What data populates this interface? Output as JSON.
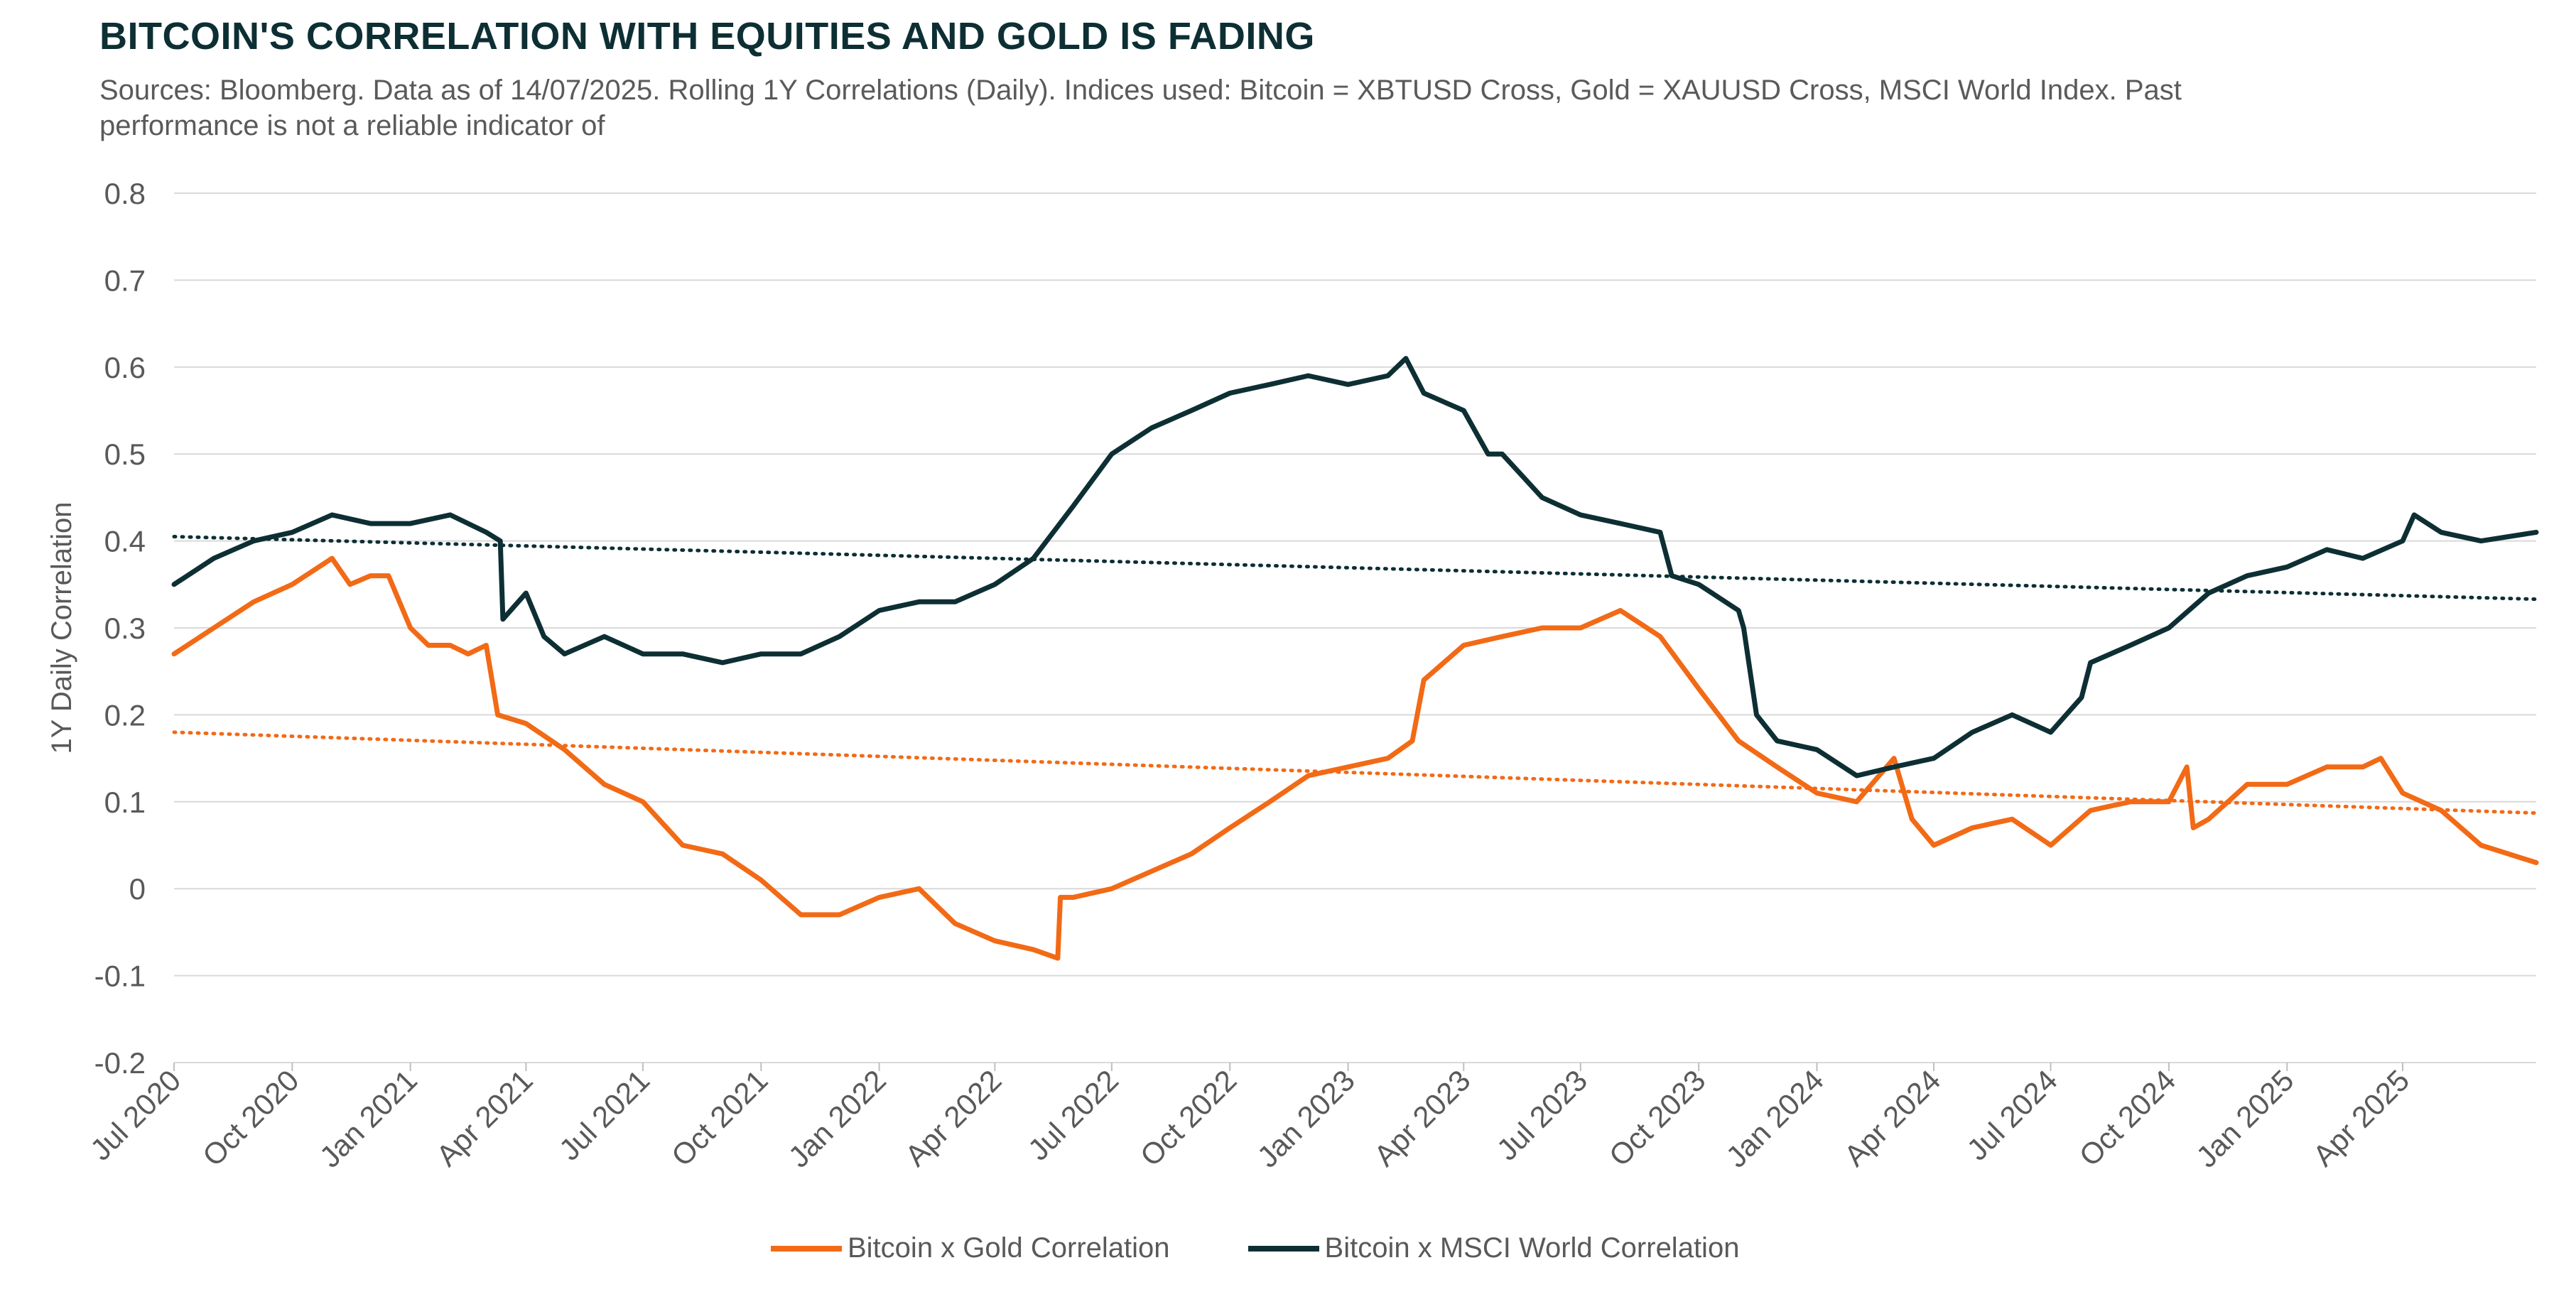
{
  "title": "BITCOIN'S CORRELATION WITH EQUITIES AND GOLD IS FADING",
  "subtitle": "Sources: Bloomberg. Data as of 14/07/2025. Rolling 1Y Correlations (Daily). Indices used: Bitcoin = XBTUSD Cross, Gold = XAUUSD Cross, MSCI World Index. Past performance is not a reliable indicator of",
  "colors": {
    "gold_series": "#f26a16",
    "msci_series": "#0d2f34",
    "grid": "#d9d9d9",
    "text": "#595959"
  },
  "chart_data": {
    "type": "line",
    "ylabel": "1Y Daily Correlation",
    "xlabel": "",
    "ylim": [
      -0.2,
      0.8
    ],
    "y_ticks": [
      "0.8",
      "0.7",
      "0.6",
      "0.5",
      "0.4",
      "0.3",
      "0.2",
      "0.1",
      "0",
      "-0.1",
      "-0.2"
    ],
    "y_tick_values": [
      0.8,
      0.7,
      0.6,
      0.5,
      0.4,
      0.3,
      0.2,
      0.1,
      0,
      -0.1,
      -0.2
    ],
    "x_ticks": [
      "Jul 2020",
      "Oct 2020",
      "Jan 2021",
      "Apr 2021",
      "Jul 2021",
      "Oct 2021",
      "Jan 2022",
      "Apr 2022",
      "Jul 2022",
      "Oct 2022",
      "Jan 2023",
      "Apr 2023",
      "Jul 2023",
      "Oct 2023",
      "Jan 2024",
      "Apr 2024",
      "Jul 2024",
      "Oct 2024",
      "Jan 2025",
      "Apr 2025"
    ],
    "xlim": [
      "2020-07-01",
      "2025-07-14"
    ],
    "grid": true,
    "legend_position": "bottom",
    "series": [
      {
        "name": "Bitcoin x Gold Correlation",
        "style": "solid",
        "x": [
          "2020-07-01",
          "2020-08-01",
          "2020-09-01",
          "2020-10-01",
          "2020-11-01",
          "2020-11-15",
          "2020-12-01",
          "2020-12-15",
          "2021-01-01",
          "2021-01-15",
          "2021-02-01",
          "2021-02-15",
          "2021-03-01",
          "2021-03-10",
          "2021-04-01",
          "2021-05-01",
          "2021-06-01",
          "2021-07-01",
          "2021-08-01",
          "2021-09-01",
          "2021-10-01",
          "2021-11-01",
          "2021-12-01",
          "2022-01-01",
          "2022-02-01",
          "2022-03-01",
          "2022-04-01",
          "2022-05-01",
          "2022-05-20",
          "2022-05-22",
          "2022-06-01",
          "2022-07-01",
          "2022-08-01",
          "2022-09-01",
          "2022-10-01",
          "2022-11-01",
          "2022-12-01",
          "2023-01-01",
          "2023-02-01",
          "2023-02-20",
          "2023-03-01",
          "2023-04-01",
          "2023-05-01",
          "2023-06-01",
          "2023-07-01",
          "2023-08-01",
          "2023-09-01",
          "2023-10-01",
          "2023-11-01",
          "2023-12-01",
          "2024-01-01",
          "2024-02-01",
          "2024-03-01",
          "2024-03-15",
          "2024-04-01",
          "2024-05-01",
          "2024-06-01",
          "2024-07-01",
          "2024-08-01",
          "2024-09-01",
          "2024-10-01",
          "2024-10-15",
          "2024-10-20",
          "2024-11-01",
          "2024-12-01",
          "2025-01-01",
          "2025-02-01",
          "2025-03-01",
          "2025-03-15",
          "2025-04-01",
          "2025-05-01",
          "2025-06-01",
          "2025-07-14"
        ],
        "y": [
          0.27,
          0.3,
          0.33,
          0.35,
          0.38,
          0.35,
          0.36,
          0.36,
          0.3,
          0.28,
          0.28,
          0.27,
          0.28,
          0.2,
          0.19,
          0.16,
          0.12,
          0.1,
          0.05,
          0.04,
          0.01,
          -0.03,
          -0.03,
          -0.01,
          0.0,
          -0.04,
          -0.06,
          -0.07,
          -0.08,
          -0.01,
          -0.01,
          0.0,
          0.02,
          0.04,
          0.07,
          0.1,
          0.13,
          0.14,
          0.15,
          0.17,
          0.24,
          0.28,
          0.29,
          0.3,
          0.3,
          0.32,
          0.29,
          0.23,
          0.17,
          0.14,
          0.11,
          0.1,
          0.15,
          0.08,
          0.05,
          0.07,
          0.08,
          0.05,
          0.09,
          0.1,
          0.1,
          0.14,
          0.07,
          0.08,
          0.12,
          0.12,
          0.14,
          0.14,
          0.15,
          0.11,
          0.09,
          0.05,
          0.03
        ]
      },
      {
        "name": "Bitcoin x MSCI World Correlation",
        "style": "solid",
        "x": [
          "2020-07-01",
          "2020-08-01",
          "2020-09-01",
          "2020-10-01",
          "2020-11-01",
          "2020-12-01",
          "2021-01-01",
          "2021-02-01",
          "2021-03-01",
          "2021-03-12",
          "2021-03-14",
          "2021-04-01",
          "2021-04-15",
          "2021-05-01",
          "2021-06-01",
          "2021-07-01",
          "2021-08-01",
          "2021-09-01",
          "2021-10-01",
          "2021-11-01",
          "2021-12-01",
          "2022-01-01",
          "2022-02-01",
          "2022-03-01",
          "2022-04-01",
          "2022-05-01",
          "2022-06-01",
          "2022-07-01",
          "2022-08-01",
          "2022-09-01",
          "2022-10-01",
          "2022-11-01",
          "2022-12-01",
          "2023-01-01",
          "2023-02-01",
          "2023-02-15",
          "2023-03-01",
          "2023-04-01",
          "2023-04-20",
          "2023-05-01",
          "2023-06-01",
          "2023-07-01",
          "2023-08-01",
          "2023-09-01",
          "2023-09-10",
          "2023-10-01",
          "2023-11-01",
          "2023-11-05",
          "2023-11-15",
          "2023-12-01",
          "2024-01-01",
          "2024-02-01",
          "2024-03-01",
          "2024-04-01",
          "2024-05-01",
          "2024-06-01",
          "2024-07-01",
          "2024-07-25",
          "2024-08-01",
          "2024-09-01",
          "2024-10-01",
          "2024-11-01",
          "2024-12-01",
          "2025-01-01",
          "2025-02-01",
          "2025-03-01",
          "2025-04-01",
          "2025-04-10",
          "2025-05-01",
          "2025-06-01",
          "2025-07-14"
        ],
        "y": [
          0.35,
          0.38,
          0.4,
          0.41,
          0.43,
          0.42,
          0.42,
          0.43,
          0.41,
          0.4,
          0.31,
          0.34,
          0.29,
          0.27,
          0.29,
          0.27,
          0.27,
          0.26,
          0.27,
          0.27,
          0.29,
          0.32,
          0.33,
          0.33,
          0.35,
          0.38,
          0.44,
          0.5,
          0.53,
          0.55,
          0.57,
          0.58,
          0.59,
          0.58,
          0.59,
          0.61,
          0.57,
          0.55,
          0.5,
          0.5,
          0.45,
          0.43,
          0.42,
          0.41,
          0.36,
          0.35,
          0.32,
          0.3,
          0.2,
          0.17,
          0.16,
          0.13,
          0.14,
          0.15,
          0.18,
          0.2,
          0.18,
          0.22,
          0.26,
          0.28,
          0.3,
          0.34,
          0.36,
          0.37,
          0.39,
          0.38,
          0.4,
          0.43,
          0.41,
          0.4,
          0.41
        ]
      },
      {
        "name": "",
        "style": "dotted",
        "color_key": "gold_series",
        "x": [
          "2020-07-01",
          "2025-07-14"
        ],
        "y": [
          0.18,
          0.087
        ]
      },
      {
        "name": "",
        "style": "dotted",
        "color_key": "msci_series",
        "x": [
          "2020-07-01",
          "2025-07-14"
        ],
        "y": [
          0.405,
          0.333
        ]
      }
    ]
  }
}
